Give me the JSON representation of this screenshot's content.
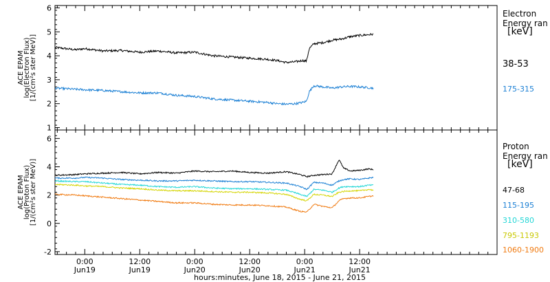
{
  "x_axis": {
    "title": "hours:minutes, June 18, 2015 - June 21, 2015",
    "range_hours": [
      -6.5,
      90
    ],
    "ticks": [
      {
        "h": 0,
        "time": "0:00",
        "day": "Jun19"
      },
      {
        "h": 12,
        "time": "12:00",
        "day": "Jun19"
      },
      {
        "h": 24,
        "time": "0:00",
        "day": "Jun20"
      },
      {
        "h": 36,
        "time": "12:00",
        "day": "Jun20"
      },
      {
        "h": 48,
        "time": "0:00",
        "day": "Jun21"
      },
      {
        "h": 60,
        "time": "12:00",
        "day": "Jun21"
      }
    ],
    "minor_step_hours": 2
  },
  "chart_data": [
    {
      "type": "line",
      "ylabel_lines": [
        "ACE EPAM",
        "log(Electron Flux)",
        "[1/(cm²s ster MeV)]"
      ],
      "ylim": [
        0.9,
        6.1
      ],
      "yticks": [
        1,
        2,
        3,
        4,
        5,
        6
      ],
      "legend_title": [
        "Electron",
        "Energy ran",
        "[keV]"
      ],
      "series": [
        {
          "name": "38-53",
          "color": "#000000",
          "x": [
            -6.5,
            -2,
            0,
            4,
            8,
            12,
            16,
            20,
            24,
            28,
            32,
            36,
            40,
            42,
            44,
            46,
            47.5,
            48.4,
            49,
            50,
            52,
            54,
            56,
            58,
            60,
            63
          ],
          "y": [
            4.35,
            4.25,
            4.3,
            4.2,
            4.22,
            4.15,
            4.2,
            4.12,
            4.15,
            4.0,
            3.95,
            3.9,
            3.85,
            3.8,
            3.72,
            3.75,
            3.8,
            3.78,
            4.3,
            4.5,
            4.55,
            4.65,
            4.7,
            4.8,
            4.85,
            4.9
          ]
        },
        {
          "name": "175-315",
          "color": "#1a7fd4",
          "x": [
            -6.5,
            -2,
            0,
            4,
            8,
            12,
            16,
            20,
            24,
            28,
            32,
            36,
            40,
            42,
            44,
            46,
            47.5,
            48.4,
            49,
            50,
            52,
            54,
            56,
            58,
            60,
            63
          ],
          "y": [
            2.65,
            2.6,
            2.58,
            2.55,
            2.5,
            2.45,
            2.45,
            2.35,
            2.3,
            2.2,
            2.15,
            2.1,
            2.05,
            2.0,
            1.98,
            2.0,
            2.05,
            2.1,
            2.5,
            2.75,
            2.7,
            2.65,
            2.7,
            2.72,
            2.7,
            2.65
          ]
        }
      ]
    },
    {
      "type": "line",
      "ylabel_lines": [
        "ACE EPAM",
        "log(Proton Flux)",
        "[1/(cm²s ster MeV)]"
      ],
      "ylim": [
        -2.2,
        6.6
      ],
      "yticks": [
        -2,
        0,
        2,
        4,
        6
      ],
      "legend_title": [
        "Proton",
        "Energy ran",
        "[keV]"
      ],
      "series": [
        {
          "name": "47-68",
          "color": "#000000",
          "x": [
            -6.5,
            -2,
            0,
            4,
            8,
            12,
            16,
            20,
            24,
            28,
            32,
            36,
            40,
            44,
            47,
            48.5,
            50,
            52,
            54,
            55.5,
            56.5,
            58,
            60,
            62,
            63
          ],
          "y": [
            3.4,
            3.45,
            3.5,
            3.55,
            3.6,
            3.5,
            3.6,
            3.55,
            3.7,
            3.65,
            3.7,
            3.6,
            3.55,
            3.65,
            3.45,
            3.3,
            3.4,
            3.45,
            3.5,
            4.5,
            3.9,
            3.7,
            3.75,
            3.85,
            3.8
          ]
        },
        {
          "name": "115-195",
          "color": "#1a7fd4",
          "x": [
            -6.5,
            -2,
            0,
            4,
            8,
            12,
            16,
            20,
            24,
            28,
            32,
            36,
            40,
            44,
            47,
            48.5,
            50,
            52,
            54,
            55.5,
            56.5,
            58,
            60,
            62,
            63
          ],
          "y": [
            3.2,
            3.2,
            3.25,
            3.2,
            3.1,
            3.05,
            3.0,
            3.0,
            3.05,
            3.0,
            2.95,
            2.95,
            2.9,
            2.85,
            2.6,
            2.4,
            2.9,
            2.85,
            2.7,
            3.0,
            3.1,
            3.15,
            3.1,
            3.2,
            3.25
          ]
        },
        {
          "name": "310-580",
          "color": "#22d6d6",
          "x": [
            -6.5,
            -2,
            0,
            4,
            8,
            12,
            16,
            20,
            24,
            28,
            32,
            36,
            40,
            44,
            47,
            48.5,
            50,
            52,
            54,
            55.5,
            56.5,
            58,
            60,
            62,
            63
          ],
          "y": [
            3.0,
            2.95,
            2.95,
            2.85,
            2.75,
            2.7,
            2.6,
            2.55,
            2.6,
            2.5,
            2.45,
            2.45,
            2.4,
            2.35,
            2.05,
            1.9,
            2.4,
            2.35,
            2.2,
            2.5,
            2.6,
            2.6,
            2.6,
            2.7,
            2.7
          ]
        },
        {
          "name": "795-1193",
          "color": "#d4d400",
          "x": [
            -6.5,
            -2,
            0,
            4,
            8,
            12,
            16,
            20,
            24,
            28,
            32,
            36,
            40,
            44,
            47,
            48.5,
            50,
            52,
            54,
            55.5,
            56.5,
            58,
            60,
            62,
            63
          ],
          "y": [
            2.75,
            2.7,
            2.65,
            2.6,
            2.5,
            2.45,
            2.35,
            2.3,
            2.3,
            2.25,
            2.2,
            2.2,
            2.15,
            2.05,
            1.7,
            1.6,
            2.05,
            2.0,
            1.9,
            2.2,
            2.25,
            2.3,
            2.3,
            2.4,
            2.35
          ]
        },
        {
          "name": "1060-1900",
          "color": "#f07a10",
          "x": [
            -6.5,
            -2,
            0,
            4,
            8,
            12,
            16,
            20,
            24,
            28,
            32,
            36,
            40,
            44,
            47,
            48.5,
            50,
            52,
            54,
            55.5,
            56.5,
            58,
            60,
            62,
            63
          ],
          "y": [
            2.05,
            2.0,
            1.95,
            1.85,
            1.75,
            1.65,
            1.55,
            1.45,
            1.45,
            1.35,
            1.3,
            1.3,
            1.25,
            1.15,
            0.85,
            0.8,
            1.35,
            1.2,
            1.1,
            1.6,
            1.75,
            1.8,
            1.8,
            1.9,
            1.95
          ]
        }
      ]
    }
  ]
}
